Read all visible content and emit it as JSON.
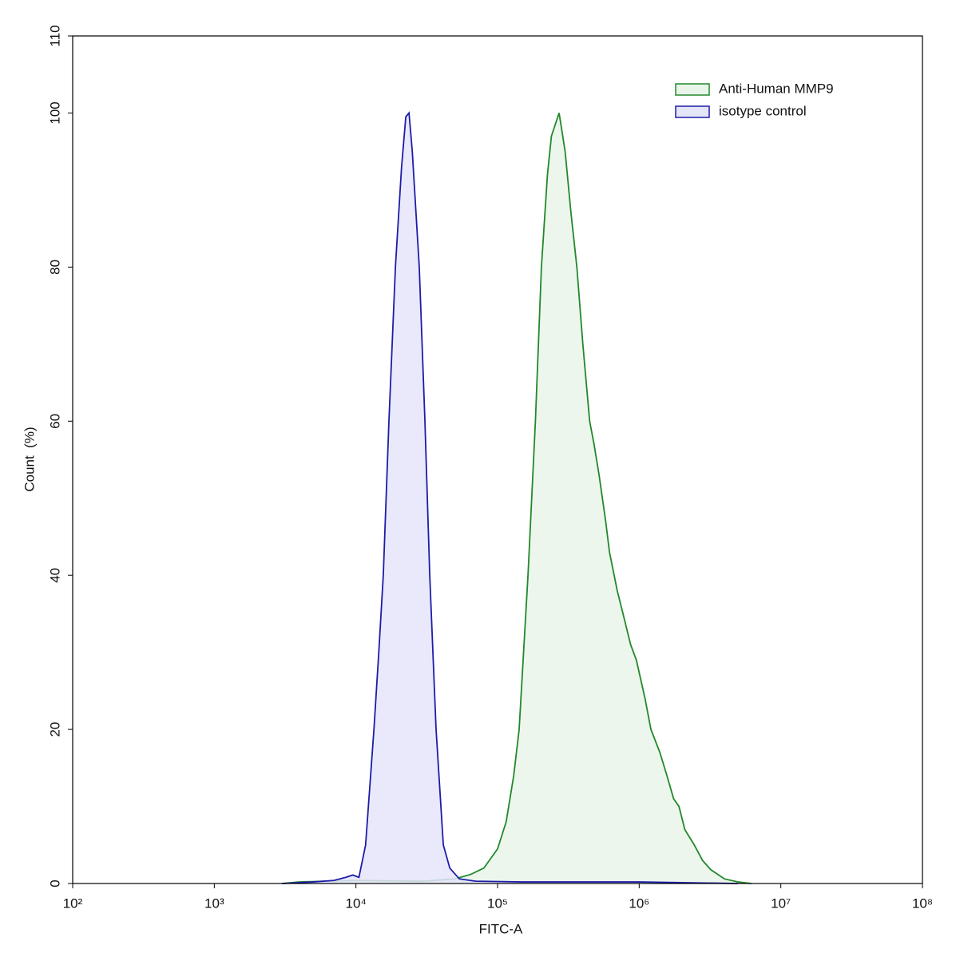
{
  "chart_data": {
    "type": "histogram-overlay",
    "xlabel": "FITC-A",
    "ylabel": "Count  (%)",
    "xscale": "log",
    "xlim": [
      100,
      100000000
    ],
    "xticks": [
      {
        "value": 100,
        "label": "10²"
      },
      {
        "value": 1000,
        "label": "10³"
      },
      {
        "value": 10000,
        "label": "10⁴"
      },
      {
        "value": 100000,
        "label": "10⁵"
      },
      {
        "value": 1000000,
        "label": "10⁶"
      },
      {
        "value": 10000000,
        "label": "10⁷"
      },
      {
        "value": 100000000,
        "label": "10⁸"
      }
    ],
    "ylim": [
      0,
      110
    ],
    "yticks": [
      0,
      20,
      40,
      60,
      80,
      100,
      110
    ],
    "legend": "upper right",
    "series": [
      {
        "name": "Anti-Human MMP9",
        "color": "#22882a",
        "fill": "#e9f5e9",
        "x": [
          3000,
          4000,
          6000,
          10000,
          30000,
          50000,
          65000,
          80000,
          100000,
          115000,
          130000,
          142000,
          164000,
          185000,
          204000,
          225000,
          240000,
          272000,
          300000,
          330000,
          363000,
          400000,
          447000,
          480000,
          521000,
          580000,
          617000,
          700000,
          769000,
          870000,
          955000,
          1100000,
          1210000,
          1400000,
          1570000,
          1750000,
          1910000,
          2100000,
          2450000,
          2800000,
          3200000,
          4000000,
          5000000,
          6200000
        ],
        "values": [
          0,
          0.2,
          0.3,
          0.4,
          0.3,
          0.6,
          1.2,
          2,
          4.5,
          8,
          14,
          20,
          40,
          60,
          80,
          92,
          97,
          100,
          95,
          87,
          80,
          70,
          60,
          57,
          53,
          47,
          43,
          38,
          35,
          31,
          29,
          24,
          20,
          17,
          14,
          11,
          10,
          7,
          5,
          3,
          1.8,
          0.6,
          0.2,
          0
        ]
      },
      {
        "name": "isotype control",
        "color": "#1c1ca8",
        "fill": "#e5e5fa",
        "x": [
          3000,
          5000,
          7000,
          8500,
          9500,
          10500,
          11700,
          13400,
          14500,
          15600,
          17100,
          19000,
          21000,
          22500,
          23700,
          25000,
          28000,
          30700,
          33200,
          36800,
          41400,
          46000,
          53700,
          70000,
          150000,
          1000000,
          5000000
        ],
        "values": [
          0,
          0.2,
          0.4,
          0.8,
          1.1,
          0.8,
          5,
          20,
          30,
          40,
          60,
          80,
          93,
          99.5,
          100,
          95,
          80,
          60,
          40,
          20,
          5,
          2,
          0.6,
          0.3,
          0.2,
          0.2,
          0
        ]
      }
    ]
  }
}
